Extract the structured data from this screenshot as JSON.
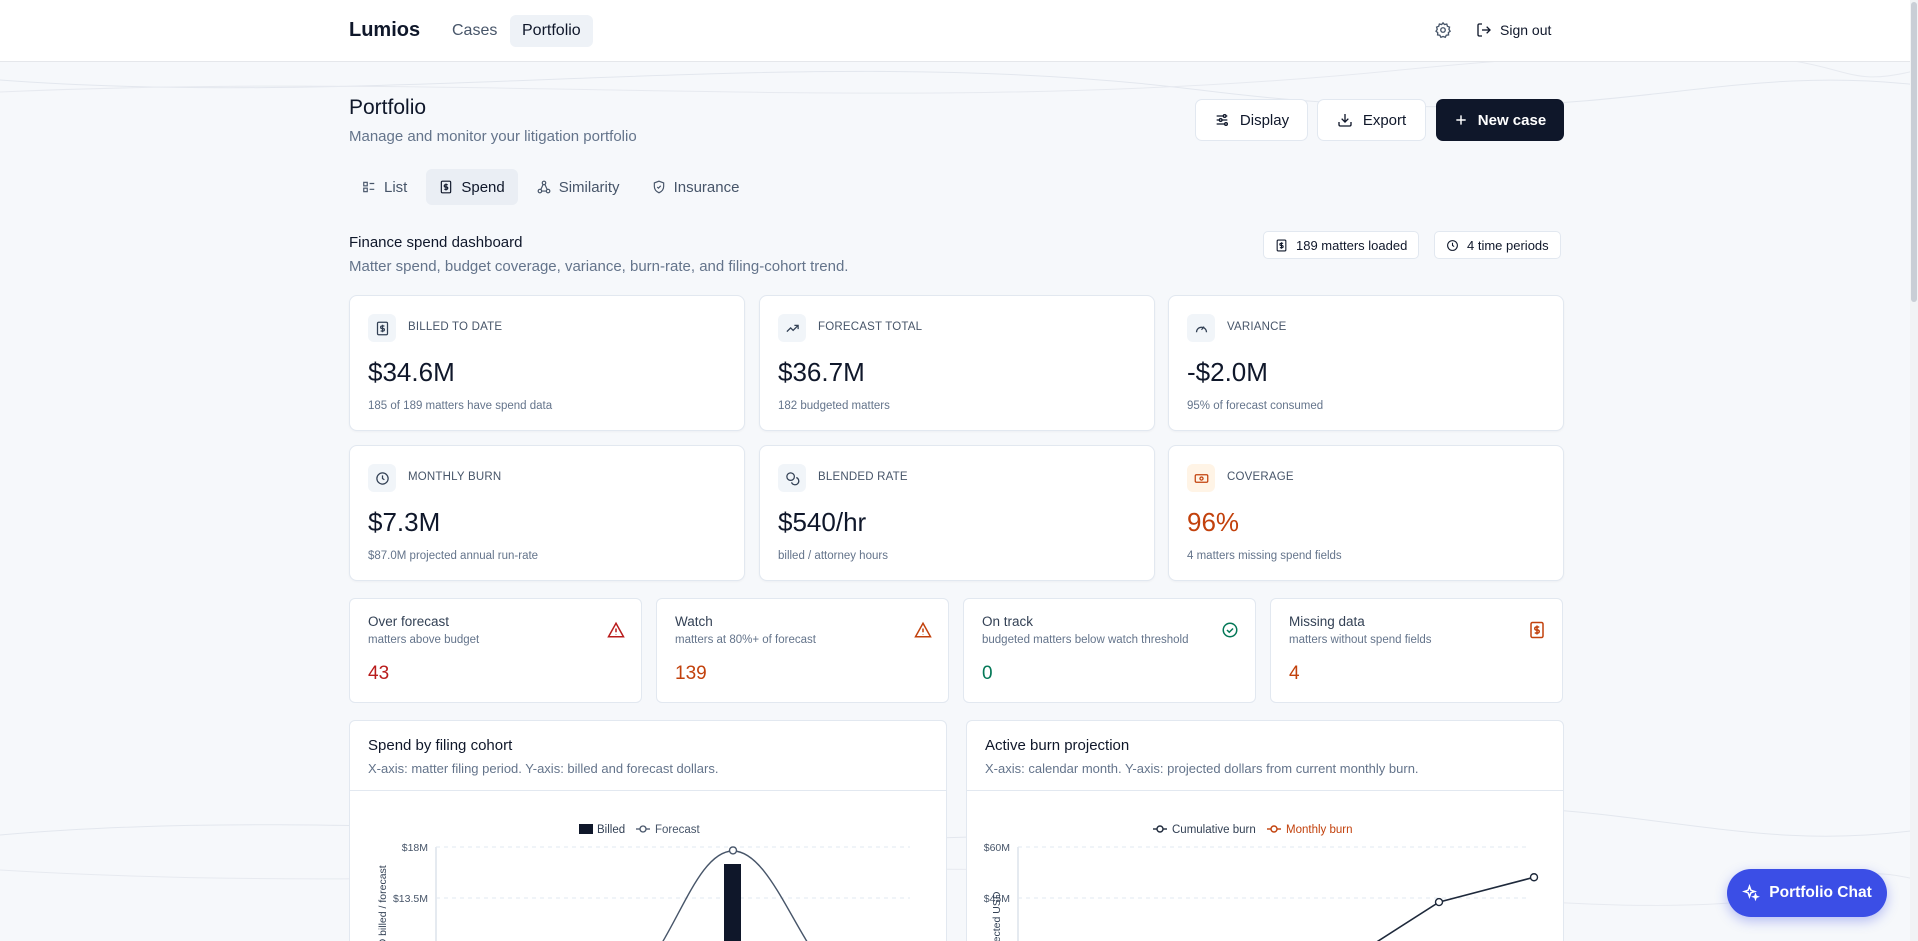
{
  "nav": {
    "brand": "Lumios",
    "links": [
      "Cases",
      "Portfolio"
    ],
    "signout": "Sign out"
  },
  "header": {
    "title": "Portfolio",
    "subtitle": "Manage and monitor your litigation portfolio",
    "display_label": "Display",
    "export_label": "Export",
    "new_case_label": "New case"
  },
  "tabs": [
    "List",
    "Spend",
    "Similarity",
    "Insurance"
  ],
  "dashboard": {
    "title": "Finance spend dashboard",
    "subtitle": "Matter spend, budget coverage, variance, burn-rate, and filing-cohort trend.",
    "chip_matters": "189 matters loaded",
    "chip_periods": "4 time periods"
  },
  "kpis": [
    {
      "label": "BILLED TO DATE",
      "value": "$34.6M",
      "note": "185 of 189 matters have spend data",
      "icon": "dollar-doc-icon"
    },
    {
      "label": "FORECAST TOTAL",
      "value": "$36.7M",
      "note": "182 budgeted matters",
      "icon": "trending-up-icon"
    },
    {
      "label": "VARIANCE",
      "value": "-$2.0M",
      "note": "95% of forecast consumed",
      "icon": "gauge-icon"
    },
    {
      "label": "MONTHLY BURN",
      "value": "$7.3M",
      "note": "$87.0M projected annual run-rate",
      "icon": "clock-icon"
    },
    {
      "label": "BLENDED RATE",
      "value": "$540/hr",
      "note": "billed / attorney hours",
      "icon": "coins-icon"
    },
    {
      "label": "COVERAGE",
      "value": "96%",
      "note": "4 matters missing spend fields",
      "icon": "banknote-icon"
    }
  ],
  "stats": [
    {
      "title": "Over forecast",
      "sub": "matters above budget",
      "value": "43",
      "color": "#b91c1c"
    },
    {
      "title": "Watch",
      "sub": "matters at 80%+ of forecast",
      "value": "139",
      "color": "#c2410c"
    },
    {
      "title": "On track",
      "sub": "budgeted matters below watch threshold",
      "value": "0",
      "color": "#047857"
    },
    {
      "title": "Missing data",
      "sub": "matters without spend fields",
      "value": "4",
      "color": "#c2410c"
    }
  ],
  "charts": {
    "cohort": {
      "title": "Spend by filing cohort",
      "subtitle": "X-axis: matter filing period. Y-axis: billed and forecast dollars.",
      "legend_billed": "Billed",
      "legend_forecast": "Forecast",
      "ylabel": "USD billed / forecast",
      "ticks": [
        "$18M",
        "$13.5M"
      ]
    },
    "burn": {
      "title": "Active burn projection",
      "subtitle": "X-axis: calendar month. Y-axis: projected dollars from current monthly burn.",
      "legend_cumulative": "Cumulative burn",
      "legend_monthly": "Monthly burn",
      "ylabel": "Projected USD",
      "ticks": [
        "$60M",
        "$45M"
      ]
    }
  },
  "chart_data": [
    {
      "type": "bar",
      "title": "Spend by filing cohort",
      "ylabel": "USD billed / forecast",
      "ylim": [
        0,
        18000000
      ],
      "series": [
        {
          "name": "Billed",
          "values": [
            16500000
          ]
        },
        {
          "name": "Forecast",
          "values": [
            17700000
          ]
        }
      ]
    },
    {
      "type": "line",
      "title": "Active burn projection",
      "ylabel": "Projected USD",
      "ylim": [
        0,
        60000000
      ],
      "series": [
        {
          "name": "Cumulative burn",
          "values": [
            43800000,
            51100000
          ]
        },
        {
          "name": "Monthly burn",
          "values": []
        }
      ]
    }
  ],
  "chat": {
    "label": "Portfolio Chat"
  },
  "colors": {
    "primary": "#0f172a",
    "accent": "#3b4ee6",
    "danger": "#b91c1c",
    "warning": "#c2410c",
    "success": "#047857"
  }
}
